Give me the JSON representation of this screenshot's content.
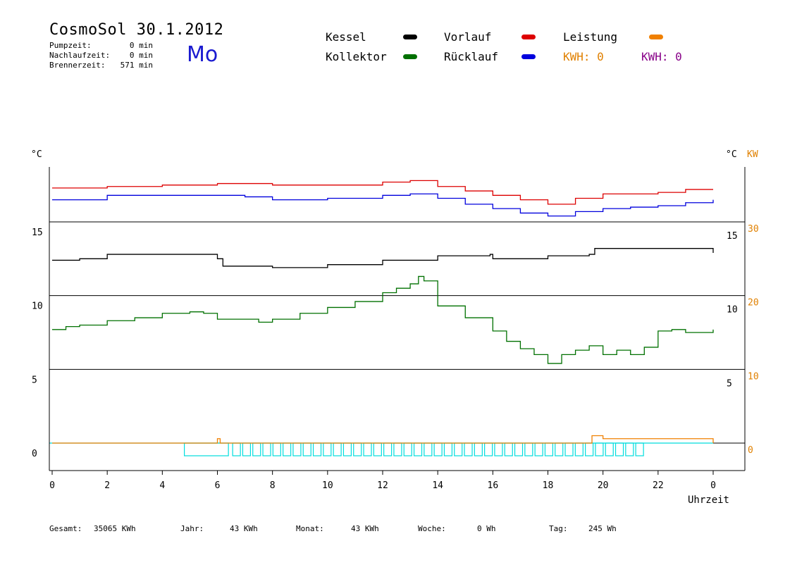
{
  "header": {
    "title": "CosmoSol 30.1.2012",
    "day": "Mo",
    "info": [
      {
        "label": "Pumpzeit:",
        "value": "0 min"
      },
      {
        "label": "Nachlaufzeit:",
        "value": "0 min"
      },
      {
        "label": "Brennerzeit:",
        "value": "571 min"
      }
    ]
  },
  "legend": {
    "kessel": "Kessel",
    "vorlauf": "Vorlauf",
    "leistung": "Leistung",
    "kollektor": "Kollektor",
    "ruecklauf": "Rücklauf",
    "kwh1": "KWH: 0",
    "kwh2": "KWH: 0"
  },
  "colors": {
    "kessel": "#000000",
    "vorlauf": "#dd0000",
    "leistung": "#f08000",
    "kollektor": "#007000",
    "ruecklauf": "#0000dd",
    "pump": "#00dddd",
    "kwh2": "#880088"
  },
  "footer": {
    "gesamt_label": "Gesamt:",
    "gesamt": "35065 KWh",
    "jahr_label": "Jahr:",
    "jahr": "43 KWh",
    "monat_label": "Monat:",
    "monat": "43 KWh",
    "woche_label": "Woche:",
    "woche": "0 Wh",
    "tag_label": "Tag:",
    "tag": "245 Wh"
  },
  "chart_data": {
    "type": "line",
    "xlabel": "Uhrzeit",
    "x_ticks": [
      "0",
      "2",
      "4",
      "6",
      "8",
      "10",
      "12",
      "14",
      "16",
      "18",
      "20",
      "22",
      "0"
    ],
    "left_unit": "°C",
    "right_unit": "°C",
    "right_unit2": "KW",
    "left_ticks": [
      15,
      10,
      5,
      0
    ],
    "left_tick_labels": [
      "15",
      "10",
      "5",
      "0"
    ],
    "right_inner_tick_labels": [
      "15",
      "10",
      "5"
    ],
    "right_outer_tick_labels": [
      "30",
      "20",
      "10",
      "0"
    ],
    "grid": true,
    "series": [
      {
        "name": "Vorlauf",
        "color": "#dd0000",
        "x": [
          0,
          2,
          4,
          6,
          8,
          10,
          12,
          13,
          14,
          15,
          16,
          17,
          18,
          19,
          20,
          21,
          22,
          23,
          24
        ],
        "y": [
          17.3,
          17.4,
          17.5,
          17.6,
          17.5,
          17.5,
          17.7,
          17.8,
          17.4,
          17.1,
          16.8,
          16.5,
          16.2,
          16.6,
          16.9,
          16.9,
          17.0,
          17.2,
          17.2
        ]
      },
      {
        "name": "Rücklauf",
        "color": "#0000dd",
        "x": [
          0,
          2,
          4,
          6,
          7,
          8,
          10,
          12,
          13,
          14,
          15,
          16,
          17,
          18,
          19,
          20,
          21,
          22,
          23,
          24
        ],
        "y": [
          16.5,
          16.8,
          16.8,
          16.8,
          16.7,
          16.5,
          16.6,
          16.8,
          16.9,
          16.6,
          16.2,
          15.9,
          15.6,
          15.4,
          15.7,
          15.9,
          16.0,
          16.1,
          16.3,
          16.5
        ]
      },
      {
        "name": "Kessel",
        "color": "#000000",
        "x": [
          0,
          1,
          2,
          4,
          5.9,
          6,
          6.2,
          8,
          10,
          12,
          14,
          15.9,
          16,
          18,
          19.5,
          19.7,
          24
        ],
        "y": [
          12.4,
          12.5,
          12.8,
          12.8,
          12.8,
          12.5,
          12.0,
          11.9,
          12.1,
          12.4,
          12.7,
          12.8,
          12.5,
          12.7,
          12.8,
          13.2,
          12.9
        ]
      },
      {
        "name": "Kollektor",
        "color": "#007000",
        "x": [
          0,
          0.5,
          1,
          2,
          3,
          4,
          5,
          5.5,
          6,
          7,
          7.5,
          8,
          9,
          10,
          11,
          12,
          12.5,
          13,
          13.3,
          13.5,
          14,
          15,
          16,
          16.5,
          17,
          17.5,
          18,
          18.5,
          19,
          19.5,
          20,
          20.5,
          21,
          21.5,
          22,
          22.5,
          23,
          24
        ],
        "y": [
          7.7,
          7.9,
          8.0,
          8.3,
          8.5,
          8.8,
          8.9,
          8.8,
          8.4,
          8.4,
          8.2,
          8.4,
          8.8,
          9.2,
          9.6,
          10.2,
          10.5,
          10.8,
          11.3,
          11.0,
          9.3,
          8.5,
          7.6,
          6.9,
          6.4,
          6.0,
          5.4,
          6.0,
          6.3,
          6.6,
          6.0,
          6.3,
          6.0,
          6.5,
          7.6,
          7.7,
          7.5,
          7.7
        ]
      },
      {
        "name": "Leistung",
        "color": "#f08000",
        "x": [
          0,
          5.9,
          6,
          6.05,
          6.1,
          19.5,
          19.6,
          20,
          24
        ],
        "y": [
          0,
          0,
          0.3,
          0.3,
          0,
          0,
          0.5,
          0.3,
          0
        ]
      }
    ],
    "pump_blocks": {
      "color": "#00dddd",
      "start_hour": 4.8,
      "first_block_end_hour": 6.4,
      "end_hour": 21.8
    }
  }
}
